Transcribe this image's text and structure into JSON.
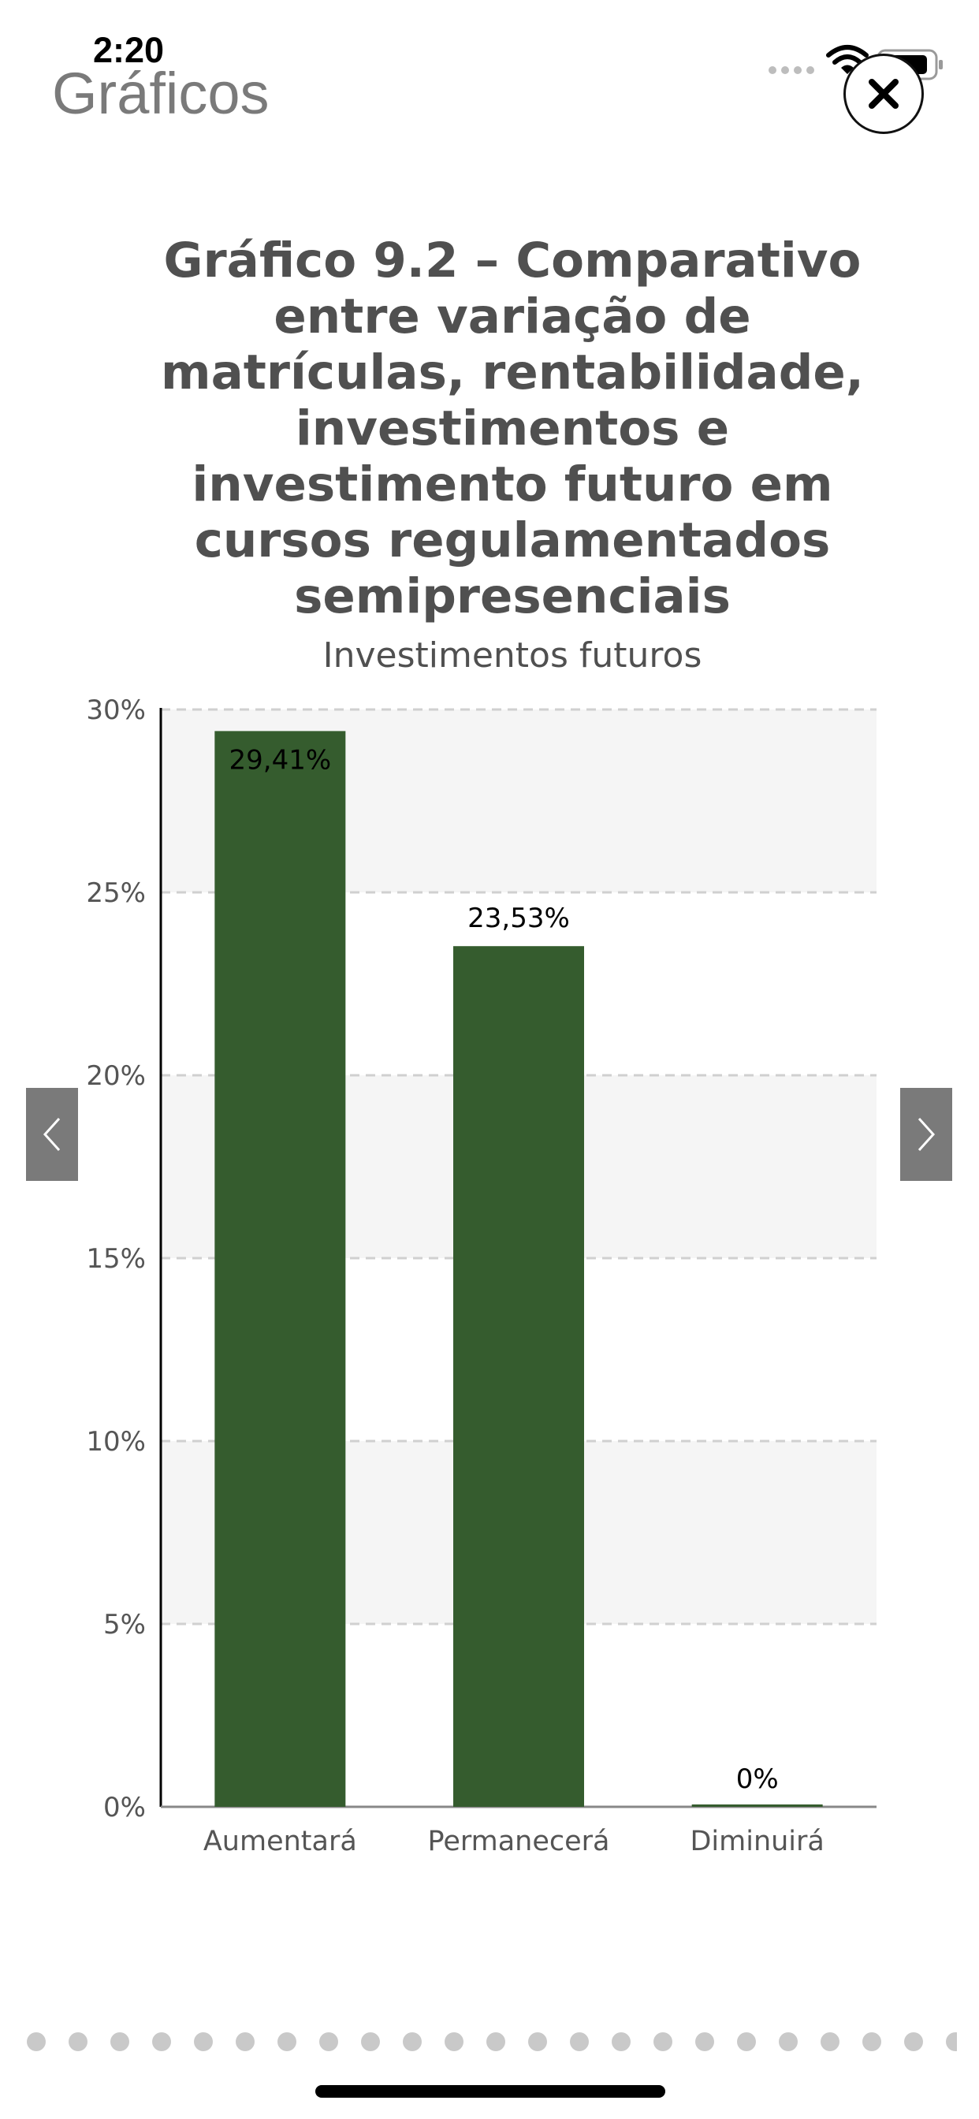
{
  "status_bar": {
    "time": "2:20"
  },
  "header": {
    "title": "Gráficos"
  },
  "chart_data": {
    "type": "bar",
    "title": "Gráfico 9.2 – Comparativo entre variação de matrículas, rentabilidade, investimentos e investimento futuro em cursos regulamentados semipresenciais",
    "subtitle": "Investimentos futuros",
    "categories": [
      "Aumentará",
      "Permanecerá",
      "Diminuirá"
    ],
    "values": [
      29.41,
      23.53,
      0
    ],
    "data_labels": [
      "29,41%",
      "23,53%",
      "0%"
    ],
    "y_ticks": [
      "0%",
      "5%",
      "10%",
      "15%",
      "20%",
      "25%",
      "30%"
    ],
    "ylim": [
      0,
      30
    ],
    "bar_color": "#355c2e",
    "grid": true,
    "legend": "none"
  },
  "pager": {
    "page_count": 23
  }
}
